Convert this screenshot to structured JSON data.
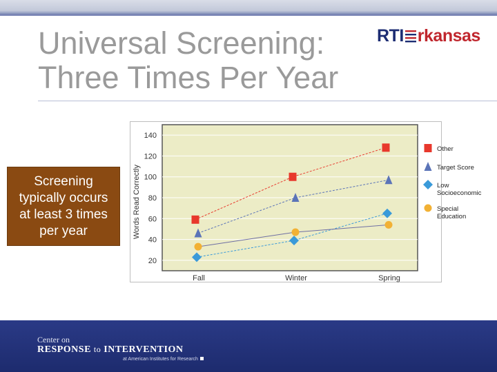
{
  "slide": {
    "title_line1": "Universal Screening:",
    "title_line2": "Three Times Per Year",
    "logo_left": "RTI",
    "logo_right": "rkansas",
    "callout": [
      "Screening",
      "typically occurs",
      "at least 3 times",
      "per year"
    ]
  },
  "footer": {
    "line1": "Center on",
    "line2_a": "RESPONSE",
    "line2_b": "to",
    "line2_c": "INTERVENTION",
    "line3": "at American Institutes for Research"
  },
  "colors": {
    "Other": "#e8382c",
    "Target Score": "#5b74b8",
    "Low Socioeconomic": "#3a9ad9",
    "Special Education": "#f2b134",
    "plot_bg": "#ececc6"
  },
  "chart_data": {
    "type": "line",
    "categories": [
      "Fall",
      "Winter",
      "Spring"
    ],
    "ylabel": "Words Read Correctly",
    "xlabel": "",
    "ylim": [
      10,
      150
    ],
    "yticks": [
      20,
      40,
      60,
      80,
      100,
      120,
      140
    ],
    "grid": true,
    "legend": "right",
    "series": [
      {
        "name": "Other",
        "marker": "square",
        "values": [
          59,
          100,
          128
        ]
      },
      {
        "name": "Target Score",
        "marker": "triangle",
        "values": [
          46,
          80,
          97
        ]
      },
      {
        "name": "Low Socioeconomic",
        "marker": "diamond",
        "values": [
          23,
          39,
          65
        ]
      },
      {
        "name": "Special Education",
        "marker": "circle",
        "values": [
          33,
          47,
          54
        ]
      }
    ],
    "legend_labels": [
      {
        "series": "Other",
        "lines": [
          "Other"
        ]
      },
      {
        "series": "Target Score",
        "lines": [
          "Target Score"
        ]
      },
      {
        "series": "Low Socioeconomic",
        "lines": [
          "Low",
          "Socioeconomic"
        ]
      },
      {
        "series": "Special Education",
        "lines": [
          "Special",
          "Education"
        ]
      }
    ]
  }
}
